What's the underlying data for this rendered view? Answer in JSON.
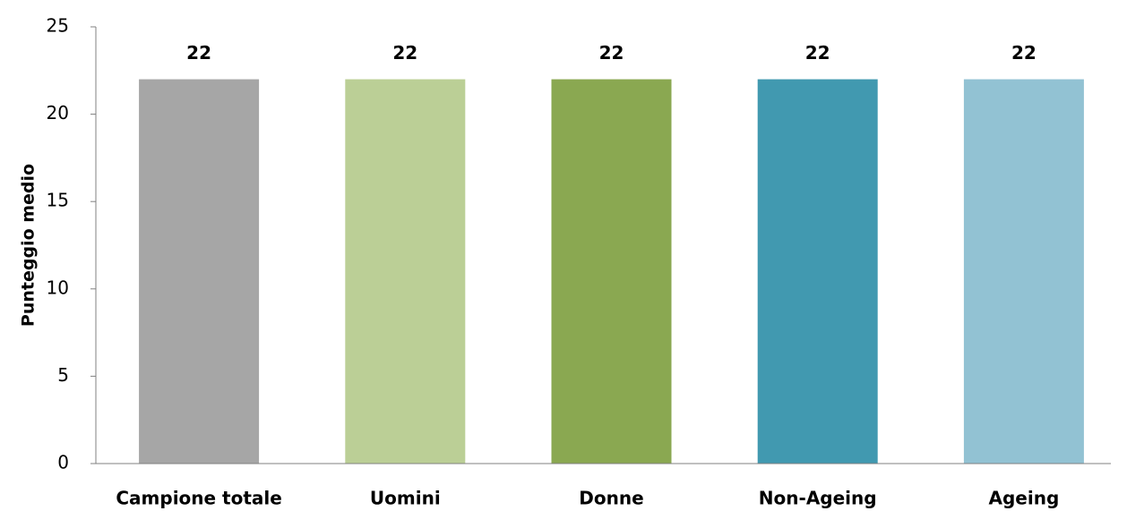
{
  "chart_data": {
    "type": "bar",
    "y_label": "Punteggio medio",
    "categories": [
      "Campione totale",
      "Uomini",
      "Donne",
      "Non-Ageing",
      "Ageing"
    ],
    "values": [
      22,
      22,
      22,
      22,
      22
    ],
    "colors": [
      "#a6a6a6",
      "#bbcf96",
      "#8aa851",
      "#4199b0",
      "#92c2d3"
    ],
    "ylim": [
      0,
      25
    ],
    "yticks": [
      0,
      5,
      10,
      15,
      20,
      25
    ],
    "grid": false
  }
}
